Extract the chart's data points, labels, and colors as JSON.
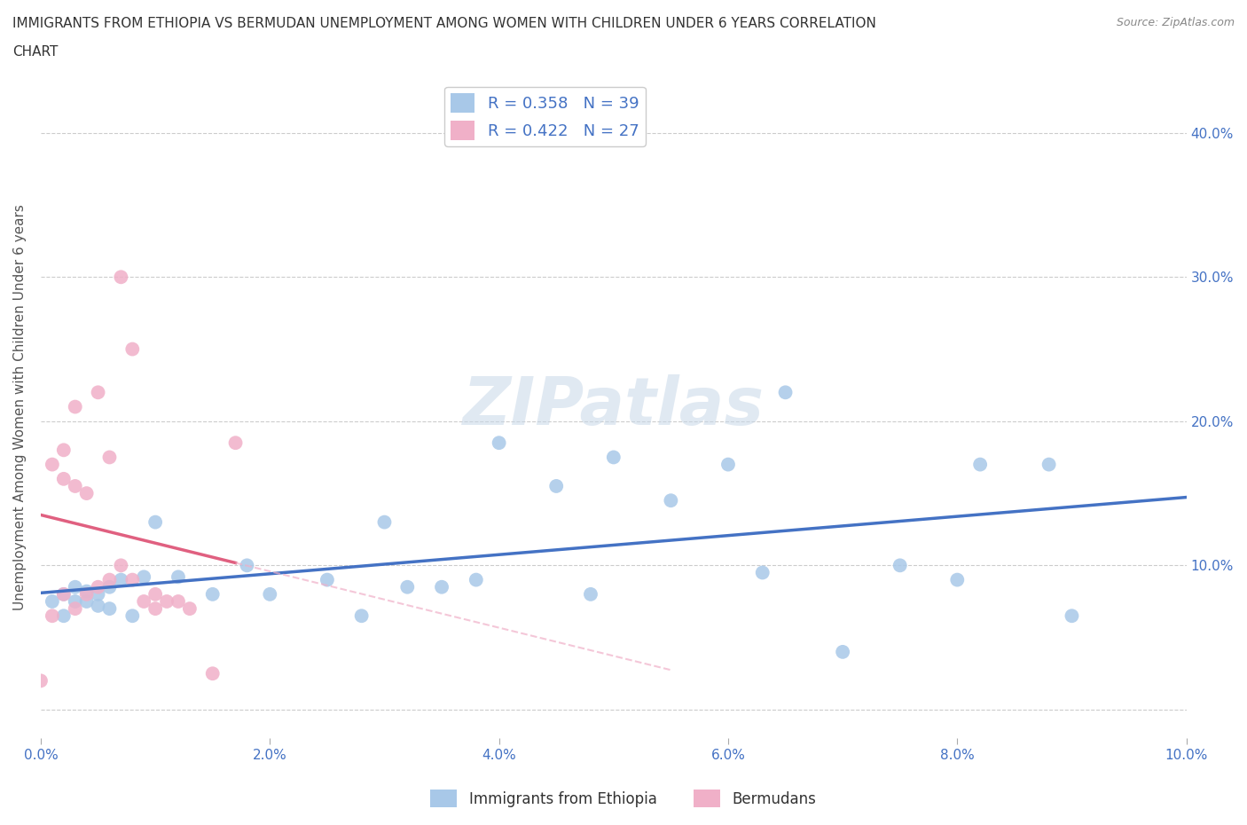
{
  "title_line1": "IMMIGRANTS FROM ETHIOPIA VS BERMUDAN UNEMPLOYMENT AMONG WOMEN WITH CHILDREN UNDER 6 YEARS CORRELATION",
  "title_line2": "CHART",
  "source": "Source: ZipAtlas.com",
  "ylabel": "Unemployment Among Women with Children Under 6 years",
  "xlim": [
    0.0,
    0.1
  ],
  "ylim": [
    -0.02,
    0.44
  ],
  "xticks": [
    0.0,
    0.02,
    0.04,
    0.06,
    0.08,
    0.1
  ],
  "yticks": [
    0.0,
    0.1,
    0.2,
    0.3,
    0.4
  ],
  "xticklabels": [
    "0.0%",
    "2.0%",
    "4.0%",
    "6.0%",
    "8.0%",
    "10.0%"
  ],
  "yticklabels_right": [
    "",
    "10.0%",
    "20.0%",
    "30.0%",
    "40.0%"
  ],
  "blue_color": "#a8c8e8",
  "pink_color": "#f0b0c8",
  "blue_line_color": "#4472c4",
  "pink_line_color": "#e06080",
  "pink_dash_color": "#f0b0c8",
  "blue_R": 0.358,
  "blue_N": 39,
  "pink_R": 0.422,
  "pink_N": 27,
  "watermark": "ZIPatlas",
  "watermark_color": "#c8d8e8",
  "legend_label_blue": "Immigrants from Ethiopia",
  "legend_label_pink": "Bermudans",
  "blue_x": [
    0.001,
    0.002,
    0.002,
    0.003,
    0.003,
    0.004,
    0.004,
    0.005,
    0.005,
    0.006,
    0.006,
    0.007,
    0.008,
    0.009,
    0.01,
    0.012,
    0.015,
    0.018,
    0.02,
    0.025,
    0.028,
    0.03,
    0.032,
    0.035,
    0.038,
    0.04,
    0.045,
    0.048,
    0.05,
    0.055,
    0.06,
    0.063,
    0.065,
    0.07,
    0.075,
    0.08,
    0.082,
    0.088,
    0.09
  ],
  "blue_y": [
    0.075,
    0.08,
    0.065,
    0.085,
    0.075,
    0.082,
    0.075,
    0.08,
    0.072,
    0.085,
    0.07,
    0.09,
    0.065,
    0.092,
    0.13,
    0.092,
    0.08,
    0.1,
    0.08,
    0.09,
    0.065,
    0.13,
    0.085,
    0.085,
    0.09,
    0.185,
    0.155,
    0.08,
    0.175,
    0.145,
    0.17,
    0.095,
    0.22,
    0.04,
    0.1,
    0.09,
    0.17,
    0.17,
    0.065
  ],
  "pink_x": [
    0.0,
    0.001,
    0.001,
    0.002,
    0.002,
    0.002,
    0.003,
    0.003,
    0.003,
    0.004,
    0.004,
    0.005,
    0.005,
    0.006,
    0.006,
    0.007,
    0.007,
    0.008,
    0.008,
    0.009,
    0.01,
    0.01,
    0.011,
    0.012,
    0.013,
    0.015,
    0.017
  ],
  "pink_y": [
    0.02,
    0.065,
    0.17,
    0.08,
    0.16,
    0.18,
    0.07,
    0.155,
    0.21,
    0.08,
    0.15,
    0.22,
    0.085,
    0.175,
    0.09,
    0.3,
    0.1,
    0.09,
    0.25,
    0.075,
    0.07,
    0.08,
    0.075,
    0.075,
    0.07,
    0.025,
    0.185
  ]
}
